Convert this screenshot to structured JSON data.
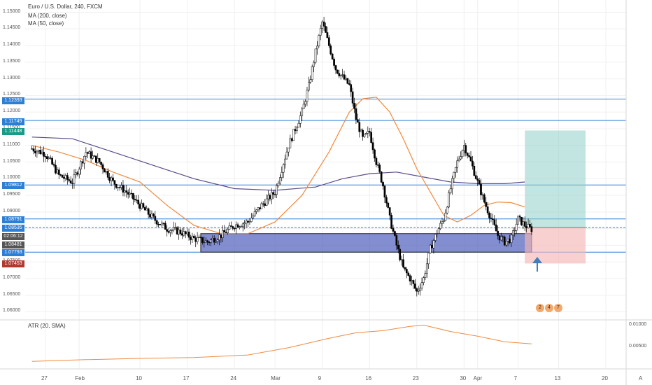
{
  "legend": {
    "symbol": "Euro / U.S. Dollar, 240, FXCM",
    "ma200": "MA (200, close)",
    "ma50": "MA (50, close)",
    "atr": "ATR (20, SMA)"
  },
  "price_badges": [
    {
      "text": "1.12393",
      "color": "#2d7fd6"
    },
    {
      "text": "1.11749",
      "color": "#2d7fd6"
    },
    {
      "text": "1.11448",
      "color": "#1a9b8a"
    },
    {
      "text": "1.09812",
      "color": "#2d7fd6"
    },
    {
      "text": "1.08791",
      "color": "#2d7fd6"
    },
    {
      "text": "1.08535",
      "color": "#2d7fd6"
    },
    {
      "text": "02:06:12",
      "color": "#555555"
    },
    {
      "text": "1.08481",
      "color": "#555555"
    },
    {
      "text": "1.07793",
      "color": "#2d7fd6"
    },
    {
      "text": "1.07453",
      "color": "#b03a2e"
    }
  ],
  "event_badges": [
    "2",
    "4",
    "7"
  ],
  "atr_tick_labels": [
    "0.01000",
    "0.00500"
  ],
  "corner_label": "A",
  "colors": {
    "candles": "#000000",
    "ma200": "#5b4b8a",
    "ma50": "#f08a3e",
    "atr": "#f08a3e",
    "hline": "#2d7fd6",
    "zone_fill": "#3f51b5",
    "target_fill": "#8fd0c8",
    "stop_fill": "#f5b7b7",
    "arrow": "#3d7fc1"
  },
  "chart_data": {
    "type": "candlestick",
    "timeframe": "240",
    "ylim": [
      1.058,
      1.152
    ],
    "y_ticks": [
      "1.15000",
      "1.14500",
      "1.14000",
      "1.13500",
      "1.13000",
      "1.12500",
      "1.12000",
      "1.11500",
      "1.11000",
      "1.10500",
      "1.10000",
      "1.09500",
      "1.09000",
      "1.08500",
      "1.08000",
      "1.07500",
      "1.07000",
      "1.06500",
      "1.06000"
    ],
    "x_labels": [
      {
        "label": "27",
        "day": 2
      },
      {
        "label": "Feb",
        "day": 7
      },
      {
        "label": "10",
        "day": 16
      },
      {
        "label": "17",
        "day": 23
      },
      {
        "label": "24",
        "day": 30
      },
      {
        "label": "Mar",
        "day": 36
      },
      {
        "label": "9",
        "day": 43
      },
      {
        "label": "16",
        "day": 50
      },
      {
        "label": "23",
        "day": 57
      },
      {
        "label": "30",
        "day": 64
      },
      {
        "label": "Apr",
        "day": 66
      },
      {
        "label": "7",
        "day": 72
      },
      {
        "label": "13",
        "day": 78
      },
      {
        "label": "20",
        "day": 85
      }
    ],
    "close_path": [
      [
        0,
        1.109
      ],
      [
        2,
        1.1075
      ],
      [
        4,
        1.101
      ],
      [
        6,
        1.099
      ],
      [
        8,
        1.108
      ],
      [
        10,
        1.105
      ],
      [
        12,
        1.099
      ],
      [
        14,
        1.096
      ],
      [
        16,
        1.092
      ],
      [
        18,
        1.088
      ],
      [
        20,
        1.085
      ],
      [
        22,
        1.084
      ],
      [
        24,
        1.082
      ],
      [
        26,
        1.081
      ],
      [
        28,
        1.083
      ],
      [
        30,
        1.086
      ],
      [
        32,
        1.087
      ],
      [
        34,
        1.092
      ],
      [
        36,
        1.096
      ],
      [
        38,
        1.11
      ],
      [
        40,
        1.12
      ],
      [
        41,
        1.128
      ],
      [
        42,
        1.138
      ],
      [
        43,
        1.147
      ],
      [
        44,
        1.14
      ],
      [
        45,
        1.133
      ],
      [
        47,
        1.128
      ],
      [
        48,
        1.118
      ],
      [
        49,
        1.112
      ],
      [
        50,
        1.114
      ],
      [
        51,
        1.105
      ],
      [
        52,
        1.098
      ],
      [
        53,
        1.088
      ],
      [
        54,
        1.08
      ],
      [
        55,
        1.073
      ],
      [
        56,
        1.07
      ],
      [
        57,
        1.066
      ],
      [
        58,
        1.07
      ],
      [
        59,
        1.079
      ],
      [
        60,
        1.084
      ],
      [
        61,
        1.088
      ],
      [
        62,
        1.097
      ],
      [
        63,
        1.105
      ],
      [
        64,
        1.11
      ],
      [
        65,
        1.105
      ],
      [
        66,
        1.099
      ],
      [
        67,
        1.093
      ],
      [
        68,
        1.088
      ],
      [
        69,
        1.083
      ],
      [
        70,
        1.081
      ],
      [
        71,
        1.082
      ],
      [
        72,
        1.088
      ],
      [
        73,
        1.086
      ],
      [
        74,
        1.0848
      ]
    ],
    "ma50": [
      [
        0,
        1.11
      ],
      [
        4,
        1.108
      ],
      [
        8,
        1.1055
      ],
      [
        12,
        1.102
      ],
      [
        16,
        1.099
      ],
      [
        20,
        1.092
      ],
      [
        24,
        1.086
      ],
      [
        28,
        1.0835
      ],
      [
        32,
        1.0835
      ],
      [
        36,
        1.087
      ],
      [
        40,
        1.095
      ],
      [
        44,
        1.108
      ],
      [
        47,
        1.12
      ],
      [
        49,
        1.124
      ],
      [
        51,
        1.1245
      ],
      [
        53,
        1.12
      ],
      [
        55,
        1.112
      ],
      [
        57,
        1.103
      ],
      [
        59,
        1.096
      ],
      [
        61,
        1.089
      ],
      [
        63,
        1.087
      ],
      [
        65,
        1.089
      ],
      [
        67,
        1.092
      ],
      [
        69,
        1.093
      ],
      [
        71,
        1.0928
      ],
      [
        73,
        1.0915
      ]
    ],
    "ma200": [
      [
        0,
        1.1125
      ],
      [
        6,
        1.112
      ],
      [
        12,
        1.108
      ],
      [
        18,
        1.104
      ],
      [
        24,
        1.1
      ],
      [
        30,
        1.097
      ],
      [
        36,
        1.0965
      ],
      [
        42,
        1.0975
      ],
      [
        46,
        1.1
      ],
      [
        50,
        1.1015
      ],
      [
        54,
        1.102
      ],
      [
        58,
        1.1005
      ],
      [
        62,
        1.099
      ],
      [
        66,
        1.0985
      ],
      [
        70,
        1.0985
      ],
      [
        73,
        1.099
      ]
    ],
    "horizontal_levels": [
      1.12393,
      1.11749,
      1.09812,
      1.08791,
      1.08535,
      1.07793
    ],
    "support_zone": {
      "start_day": 25,
      "end_day": 74,
      "top": 1.0835,
      "bottom": 1.07793
    },
    "position": {
      "start_day": 73,
      "end_day": 82,
      "entry": 1.08535,
      "target": 1.11448,
      "stop": 1.07453
    },
    "atr": {
      "ylim": [
        0,
        0.0105
      ],
      "path": [
        [
          0,
          0.0016
        ],
        [
          8,
          0.002
        ],
        [
          16,
          0.0023
        ],
        [
          24,
          0.0025
        ],
        [
          32,
          0.0031
        ],
        [
          38,
          0.0048
        ],
        [
          44,
          0.007
        ],
        [
          48,
          0.0083
        ],
        [
          52,
          0.0088
        ],
        [
          56,
          0.0098
        ],
        [
          58,
          0.0101
        ],
        [
          62,
          0.0086
        ],
        [
          66,
          0.0075
        ],
        [
          70,
          0.0062
        ],
        [
          74,
          0.0057
        ]
      ]
    }
  }
}
